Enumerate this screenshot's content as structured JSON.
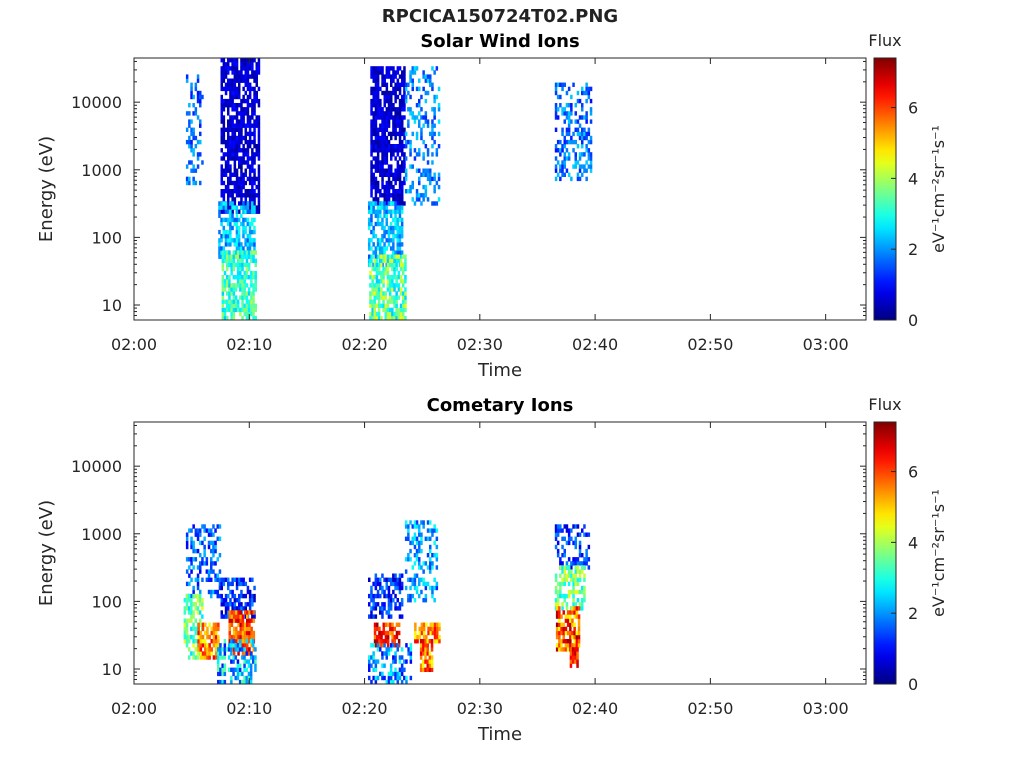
{
  "figure_title": "RPCICA150724T02.PNG",
  "chart_data": [
    {
      "type": "heatmap",
      "title": "Solar Wind Ions",
      "xlabel": "Time",
      "ylabel": "Energy (eV)",
      "x_ticks": [
        "02:00",
        "02:10",
        "02:20",
        "02:30",
        "02:40",
        "02:50",
        "03:00"
      ],
      "x_range_minutes": [
        0,
        63.5
      ],
      "y_scale": "log",
      "y_ticks": [
        10,
        100,
        1000,
        10000
      ],
      "y_tick_labels": [
        "10",
        "100",
        "1000",
        "10000"
      ],
      "ylim": [
        6,
        45000
      ],
      "colorbar": {
        "title": "Flux",
        "label": "eV⁻¹cm⁻²sr⁻¹s⁻¹",
        "ticks": [
          0,
          2,
          4,
          6
        ],
        "range": [
          0,
          7.4
        ],
        "colormap": "jet"
      },
      "clusters": [
        {
          "t": [
            4.5,
            6.0
          ],
          "e": [
            600,
            25000
          ],
          "v": [
            1.0,
            2.4
          ],
          "density": 0.35
        },
        {
          "t": [
            7.5,
            10.8
          ],
          "e": [
            250,
            40000
          ],
          "v": [
            0.2,
            1.0
          ],
          "density": 0.75
        },
        {
          "t": [
            7.3,
            10.5
          ],
          "e": [
            50,
            300
          ],
          "v": [
            1.5,
            3.0
          ],
          "density": 0.7
        },
        {
          "t": [
            7.6,
            10.6
          ],
          "e": [
            6,
            60
          ],
          "v": [
            2.4,
            4.0
          ],
          "density": 0.75
        },
        {
          "t": [
            20.5,
            23.5
          ],
          "e": [
            300,
            30000
          ],
          "v": [
            0.2,
            1.0
          ],
          "density": 0.75
        },
        {
          "t": [
            20.3,
            23.3
          ],
          "e": [
            40,
            300
          ],
          "v": [
            1.5,
            3.0
          ],
          "density": 0.7
        },
        {
          "t": [
            20.4,
            23.5
          ],
          "e": [
            6,
            50
          ],
          "v": [
            2.4,
            4.5
          ],
          "density": 0.75
        },
        {
          "t": [
            23.5,
            26.5
          ],
          "e": [
            300,
            30000
          ],
          "v": [
            1.2,
            2.6
          ],
          "density": 0.35
        },
        {
          "t": [
            36.5,
            39.7
          ],
          "e": [
            700,
            18000
          ],
          "v": [
            1.0,
            2.5
          ],
          "density": 0.45
        }
      ]
    },
    {
      "type": "heatmap",
      "title": "Cometary Ions",
      "xlabel": "Time",
      "ylabel": "Energy (eV)",
      "x_ticks": [
        "02:00",
        "02:10",
        "02:20",
        "02:30",
        "02:40",
        "02:50",
        "03:00"
      ],
      "x_range_minutes": [
        0,
        63.5
      ],
      "y_scale": "log",
      "y_ticks": [
        10,
        100,
        1000,
        10000
      ],
      "y_tick_labels": [
        "10",
        "100",
        "1000",
        "10000"
      ],
      "ylim": [
        6,
        45000
      ],
      "colorbar": {
        "title": "Flux",
        "label": "eV⁻¹cm⁻²sr⁻¹s⁻¹",
        "ticks": [
          0,
          2,
          4,
          6
        ],
        "range": [
          0,
          7.4
        ],
        "colormap": "jet"
      },
      "clusters": [
        {
          "t": [
            4.5,
            7.5
          ],
          "e": [
            120,
            1300
          ],
          "v": [
            0.8,
            2.5
          ],
          "density": 0.4
        },
        {
          "t": [
            4.3,
            6.0
          ],
          "e": [
            15,
            120
          ],
          "v": [
            2.5,
            4.5
          ],
          "density": 0.6
        },
        {
          "t": [
            5.5,
            7.4
          ],
          "e": [
            15,
            45
          ],
          "v": [
            4.5,
            6.6
          ],
          "density": 0.75
        },
        {
          "t": [
            7.5,
            10.5
          ],
          "e": [
            60,
            220
          ],
          "v": [
            0.3,
            2.0
          ],
          "density": 0.6
        },
        {
          "t": [
            8.2,
            10.4
          ],
          "e": [
            18,
            70
          ],
          "v": [
            5.0,
            7.0
          ],
          "density": 0.8
        },
        {
          "t": [
            7.2,
            10.6
          ],
          "e": [
            6,
            25
          ],
          "v": [
            1.0,
            3.5
          ],
          "density": 0.55
        },
        {
          "t": [
            20.3,
            23.2
          ],
          "e": [
            60,
            250
          ],
          "v": [
            0.4,
            2.0
          ],
          "density": 0.55
        },
        {
          "t": [
            20.8,
            23.0
          ],
          "e": [
            22,
            45
          ],
          "v": [
            5.2,
            7.2
          ],
          "density": 0.85
        },
        {
          "t": [
            20.3,
            24.0
          ],
          "e": [
            6,
            22
          ],
          "v": [
            0.8,
            3.0
          ],
          "density": 0.5
        },
        {
          "t": [
            23.5,
            26.3
          ],
          "e": [
            100,
            1500
          ],
          "v": [
            1.2,
            3.0
          ],
          "density": 0.4
        },
        {
          "t": [
            24.3,
            26.5
          ],
          "e": [
            25,
            45
          ],
          "v": [
            4.5,
            6.5
          ],
          "density": 0.7
        },
        {
          "t": [
            24.8,
            25.8
          ],
          "e": [
            10,
            25
          ],
          "v": [
            4.5,
            6.8
          ],
          "density": 0.8
        },
        {
          "t": [
            36.5,
            39.5
          ],
          "e": [
            300,
            1300
          ],
          "v": [
            0.5,
            2.0
          ],
          "density": 0.4
        },
        {
          "t": [
            36.5,
            39.0
          ],
          "e": [
            80,
            300
          ],
          "v": [
            2.5,
            4.5
          ],
          "density": 0.6
        },
        {
          "t": [
            36.6,
            38.6
          ],
          "e": [
            20,
            80
          ],
          "v": [
            4.5,
            7.3
          ],
          "density": 0.85
        },
        {
          "t": [
            37.8,
            38.4
          ],
          "e": [
            12,
            20
          ],
          "v": [
            5.5,
            7.0
          ],
          "density": 0.8
        }
      ]
    }
  ]
}
